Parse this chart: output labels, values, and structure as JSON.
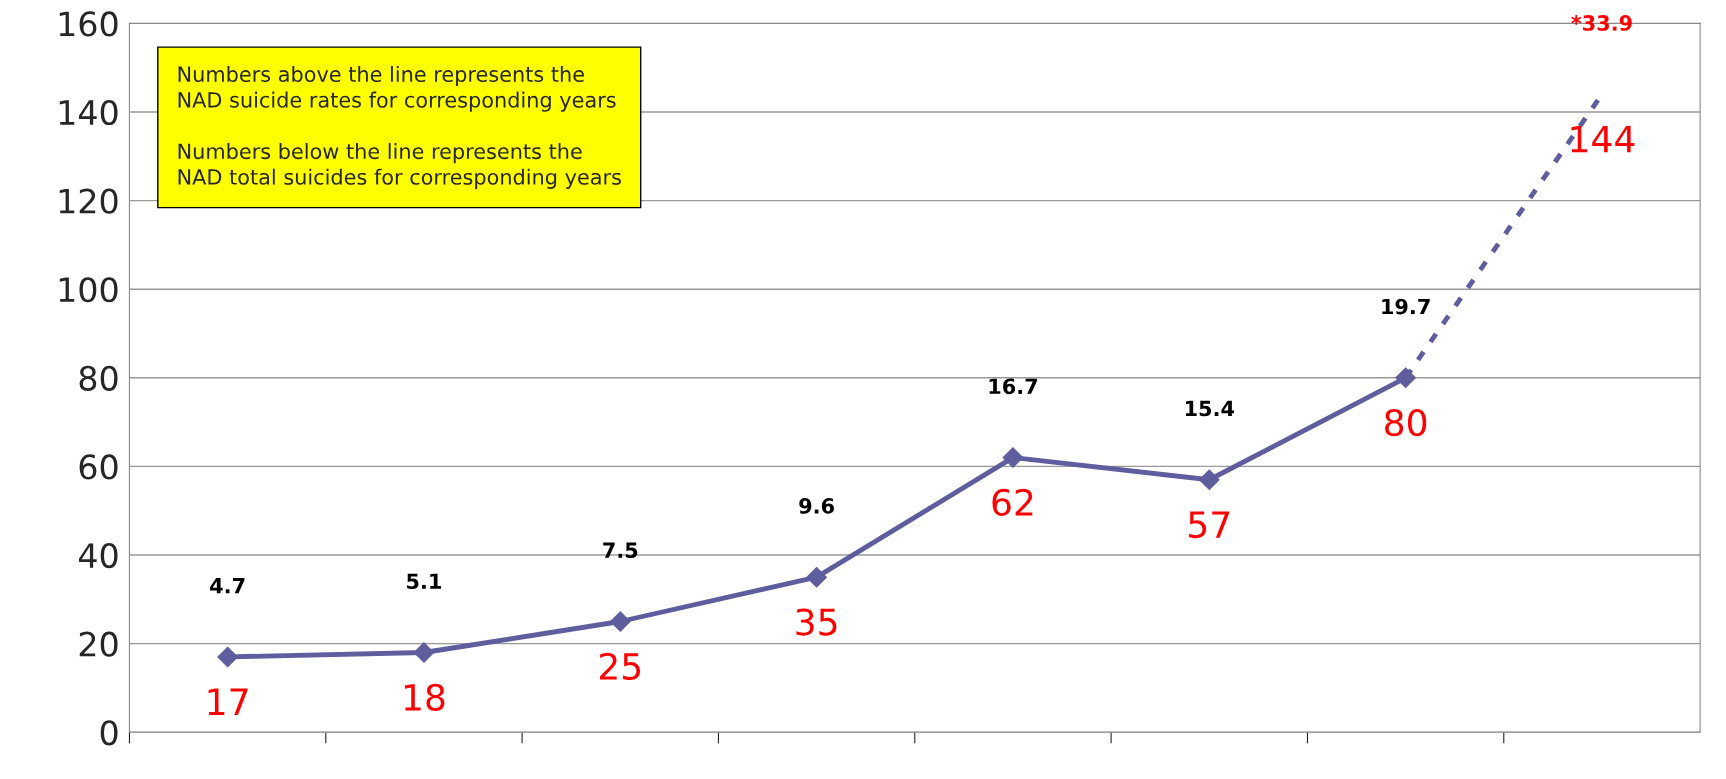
{
  "chart_data": {
    "type": "line",
    "categories": [
      null,
      null,
      null,
      null,
      null,
      null,
      null,
      null
    ],
    "series": [
      {
        "color": "#5e5e9e",
        "values": [
          17,
          18,
          25,
          35,
          62,
          57,
          80,
          null
        ],
        "value_labels": [
          "17",
          "18",
          "25",
          "35",
          "62",
          "57",
          "80",
          null
        ],
        "marker": "diamond",
        "line_style": "solid"
      },
      {
        "color": "#5e5e9e",
        "values": [
          null,
          null,
          null,
          null,
          null,
          null,
          80,
          144
        ],
        "value_labels": [
          null,
          null,
          null,
          null,
          null,
          null,
          null,
          "144"
        ],
        "marker": "none",
        "line_style": "dashed"
      }
    ],
    "ylim": [
      0,
      160
    ],
    "yticks": [
      0,
      20,
      40,
      60,
      80,
      100,
      120,
      140,
      160
    ],
    "grid": "y",
    "legend": false,
    "tick_labels": "y",
    "annotations": [
      "Numbers above the line represents the\nNAD suicide rates for corresponding years",
      "Numbers below the line represents the\nNAD total suicides for corresponding years",
      "4.7",
      "5.1",
      "7.5",
      "9.6",
      "16.7",
      "15.4",
      "19.7",
      "*33.9"
    ]
  }
}
